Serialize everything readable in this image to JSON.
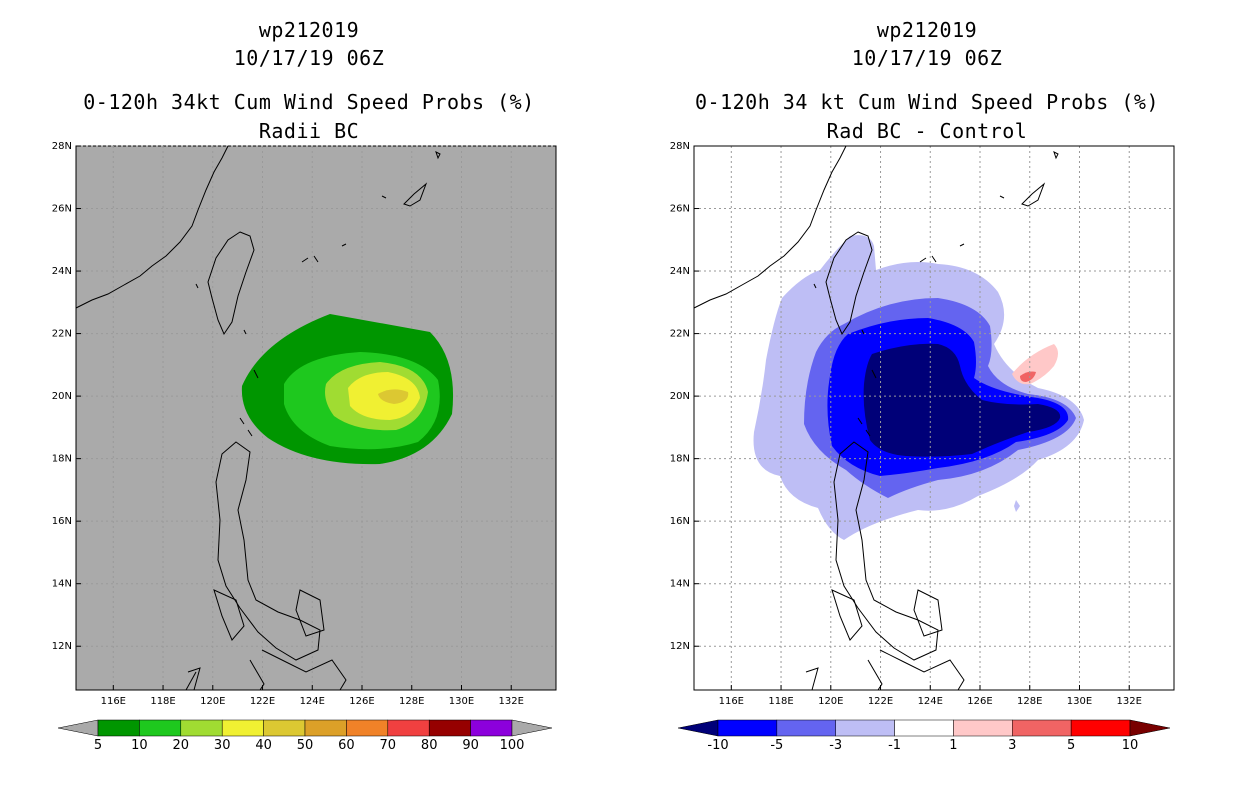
{
  "panels": [
    {
      "id": "left",
      "title_storm": "wp212019",
      "title_time": "10/17/19 06Z",
      "title_product": "0-120h 34kt Cum Wind Speed Probs (%)",
      "title_sub": "Radii BC",
      "colorbar": {
        "labels": [
          "5",
          "10",
          "20",
          "30",
          "40",
          "50",
          "60",
          "70",
          "80",
          "90",
          "100"
        ],
        "colors": [
          "#aaaaaa",
          "#009600",
          "#1ec81e",
          "#a0dc32",
          "#f0f032",
          "#dcc832",
          "#dca028",
          "#f08228",
          "#f04040",
          "#960000",
          "#8c00dc",
          "#aaaaaa"
        ]
      }
    },
    {
      "id": "right",
      "title_storm": "wp212019",
      "title_time": "10/17/19 06Z",
      "title_product": "0-120h 34 kt Cum Wind Speed Probs (%)",
      "title_sub": "Rad BC - Control",
      "colorbar": {
        "labels": [
          "-10",
          "-5",
          "-3",
          "-1",
          "1",
          "3",
          "5",
          "10"
        ],
        "colors": [
          "#000078",
          "#0000ff",
          "#6464f0",
          "#bebef5",
          "#ffffff",
          "#ffc8c8",
          "#f06464",
          "#ff0000",
          "#780000"
        ]
      }
    }
  ],
  "axes": {
    "lat_labels": [
      "28N",
      "26N",
      "24N",
      "22N",
      "20N",
      "18N",
      "16N",
      "14N",
      "12N"
    ],
    "lat_values": [
      28,
      26,
      24,
      22,
      20,
      18,
      16,
      14,
      12
    ],
    "lon_labels": [
      "116E",
      "118E",
      "120E",
      "122E",
      "124E",
      "126E",
      "128E",
      "130E",
      "132E"
    ],
    "lon_values": [
      116,
      118,
      120,
      122,
      124,
      126,
      128,
      130,
      132
    ],
    "lon_range": [
      114.5,
      133.8
    ],
    "lat_range": [
      10.6,
      28.0
    ]
  },
  "colors": {
    "map_bg_left": "#aaaaaa",
    "map_bg_right": "#ffffff",
    "coast": "#000000",
    "grid": "#9a9a9a"
  }
}
